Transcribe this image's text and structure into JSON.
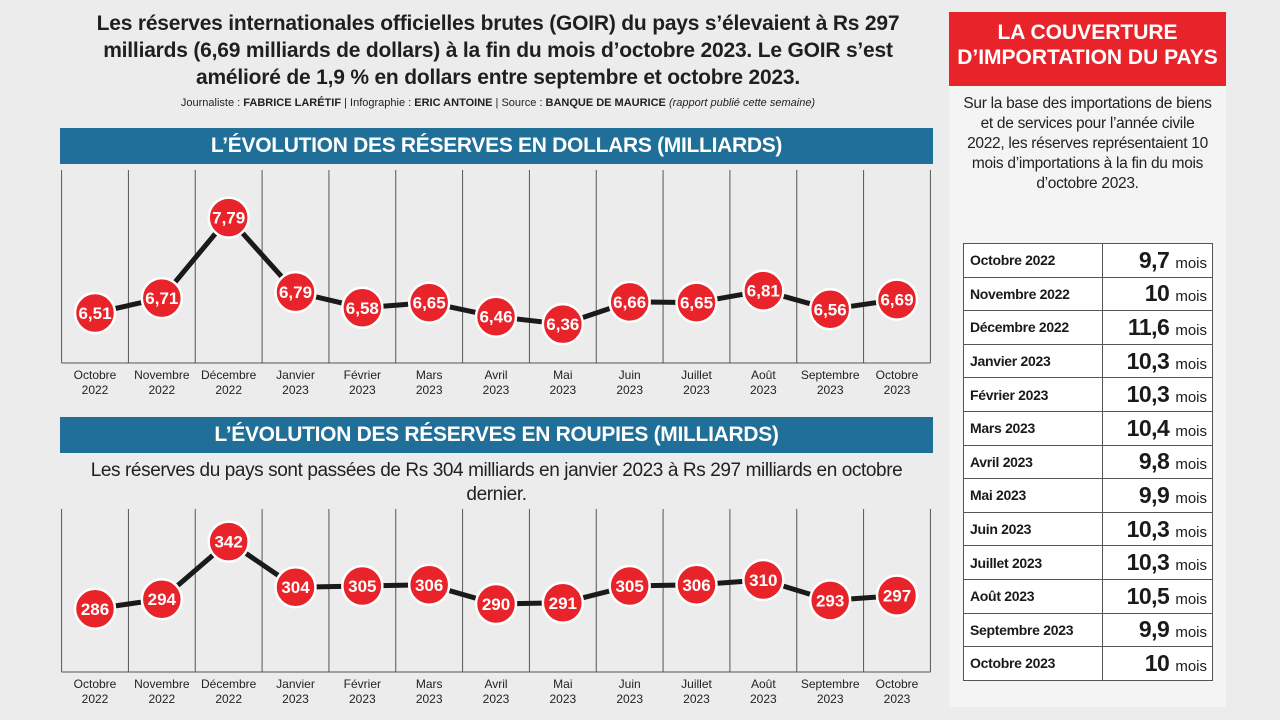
{
  "intro": {
    "headline": "Les réserves internationales officielles brutes (GOIR) du pays s’élevaient à Rs 297 milliards (6,69 milliards de dollars) à la fin du mois d’octobre 2023. Le GOIR s’est amélioré de 1,9 % en dollars entre septembre et octobre 2023.",
    "credit_journalist_label": "Journaliste :",
    "credit_journalist": "FABRICE LARÉTIF",
    "credit_infographie_label": "| Infographie :",
    "credit_infographie": "ERIC ANTOINE",
    "credit_source_label": "| Source :",
    "credit_source": "BANQUE DE MAURICE",
    "credit_note": "(rapport publié cette semaine)"
  },
  "chart_data": [
    {
      "type": "line",
      "title": "L’ÉVOLUTION DES RÉSERVES EN DOLLARS (MILLIARDS)",
      "categories": [
        "Octobre 2022",
        "Novembre 2022",
        "Décembre 2022",
        "Janvier 2023",
        "Février 2023",
        "Mars 2023",
        "Avril 2023",
        "Mai 2023",
        "Juin 2023",
        "Juillet 2023",
        "Août 2023",
        "Septembre 2023",
        "Octobre 2023"
      ],
      "values": [
        6.51,
        6.71,
        7.79,
        6.79,
        6.58,
        6.65,
        6.46,
        6.36,
        6.66,
        6.65,
        6.81,
        6.56,
        6.69
      ],
      "labels": [
        "6,51",
        "6,71",
        "7,79",
        "6,79",
        "6,58",
        "6,65",
        "6,46",
        "6,36",
        "6,66",
        "6,65",
        "6,81",
        "6,56",
        "6,69"
      ],
      "ylim": [
        6.0,
        8.0
      ],
      "grid": "vertical",
      "colors": {
        "line": "#1a1a1a",
        "marker": "#e8232a"
      }
    },
    {
      "type": "line",
      "title": "L’ÉVOLUTION DES RÉSERVES EN ROUPIES (MILLIARDS)",
      "subtitle": "Les réserves du pays sont passées de Rs 304 milliards en janvier 2023 à Rs 297 milliards en octobre dernier.",
      "categories": [
        "Octobre 2022",
        "Novembre 2022",
        "Décembre 2022",
        "Janvier 2023",
        "Février 2023",
        "Mars 2023",
        "Avril 2023",
        "Mai 2023",
        "Juin 2023",
        "Juillet 2023",
        "Août 2023",
        "Septembre 2023",
        "Octobre 2023"
      ],
      "values": [
        286,
        294,
        342,
        304,
        305,
        306,
        290,
        291,
        305,
        306,
        310,
        293,
        297
      ],
      "labels": [
        "286",
        "294",
        "342",
        "304",
        "305",
        "306",
        "290",
        "291",
        "305",
        "306",
        "310",
        "293",
        "297"
      ],
      "ylim": [
        270,
        350
      ],
      "grid": "vertical",
      "colors": {
        "line": "#1a1a1a",
        "marker": "#e8232a"
      }
    }
  ],
  "side": {
    "title": "LA COUVERTURE D’IMPORTATION DU PAYS",
    "text": "Sur la base des importations de biens et de services pour l’année civile 2022, les réserves représentaient 10 mois d’importations à la fin du mois d’octobre 2023.",
    "unit": "mois",
    "rows": [
      {
        "month": "Octobre 2022",
        "value": "9,7"
      },
      {
        "month": "Novembre 2022",
        "value": "10"
      },
      {
        "month": "Décembre 2022",
        "value": "11,6"
      },
      {
        "month": "Janvier 2023",
        "value": "10,3"
      },
      {
        "month": "Février 2023",
        "value": "10,3"
      },
      {
        "month": "Mars 2023",
        "value": "10,4"
      },
      {
        "month": "Avril 2023",
        "value": "9,8"
      },
      {
        "month": "Mai 2023",
        "value": "9,9"
      },
      {
        "month": "Juin 2023",
        "value": "10,3"
      },
      {
        "month": "Juillet 2023",
        "value": "10,3"
      },
      {
        "month": "Août 2023",
        "value": "10,5"
      },
      {
        "month": "Septembre 2023",
        "value": "9,9"
      },
      {
        "month": "Octobre 2023",
        "value": "10"
      }
    ]
  }
}
